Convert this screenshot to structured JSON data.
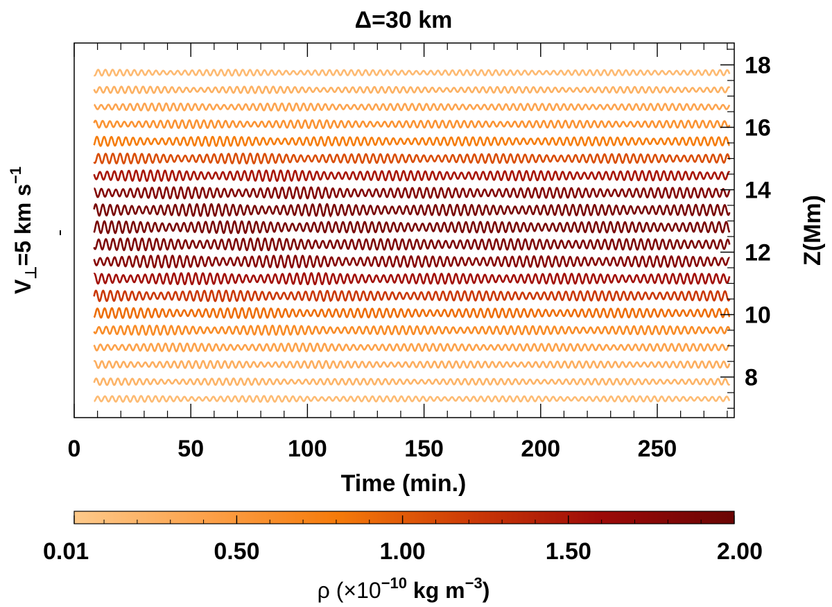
{
  "chart_data": {
    "type": "line",
    "title": "Δ=30 km",
    "xlabel": "Time (min.)",
    "ylabel_left": {
      "base": "V",
      "sub": "⊥",
      "text": "=5 km s",
      "sup": "−1"
    },
    "ylabel_right": "Z(Mm)",
    "xlim": [
      0,
      283
    ],
    "ylim": [
      6.7,
      18.7
    ],
    "xticks": [
      0,
      50,
      100,
      150,
      200,
      250
    ],
    "xtick_labels": [
      "0",
      "50",
      "100",
      "150",
      "200",
      "250"
    ],
    "yticks": [
      8,
      10,
      12,
      14,
      16,
      18
    ],
    "ytick_labels": [
      "8",
      "10",
      "12",
      "14",
      "16",
      "18"
    ],
    "series_time_range": [
      8.5,
      281
    ],
    "oscillation_period_min": 3.1,
    "series": [
      {
        "z": 7.3,
        "rho": 0.15,
        "amp": 0.09
      },
      {
        "z": 7.85,
        "rho": 0.22,
        "amp": 0.1
      },
      {
        "z": 8.4,
        "rho": 0.28,
        "amp": 0.11
      },
      {
        "z": 8.95,
        "rho": 0.4,
        "amp": 0.12
      },
      {
        "z": 9.5,
        "rho": 0.62,
        "amp": 0.14
      },
      {
        "z": 10.05,
        "rho": 0.88,
        "amp": 0.15
      },
      {
        "z": 10.6,
        "rho": 1.22,
        "amp": 0.16
      },
      {
        "z": 11.15,
        "rho": 1.55,
        "amp": 0.17
      },
      {
        "z": 11.7,
        "rho": 1.78,
        "amp": 0.18
      },
      {
        "z": 12.25,
        "rho": 1.85,
        "amp": 0.18
      },
      {
        "z": 12.8,
        "rho": 1.88,
        "amp": 0.18
      },
      {
        "z": 13.35,
        "rho": 1.88,
        "amp": 0.18
      },
      {
        "z": 13.9,
        "rho": 1.8,
        "amp": 0.17
      },
      {
        "z": 14.45,
        "rho": 1.5,
        "amp": 0.16
      },
      {
        "z": 15.0,
        "rho": 1.08,
        "amp": 0.15
      },
      {
        "z": 15.55,
        "rho": 0.78,
        "amp": 0.14
      },
      {
        "z": 16.1,
        "rho": 0.55,
        "amp": 0.12
      },
      {
        "z": 16.65,
        "rho": 0.38,
        "amp": 0.11
      },
      {
        "z": 17.2,
        "rho": 0.25,
        "amp": 0.1
      },
      {
        "z": 17.75,
        "rho": 0.16,
        "amp": 0.09
      }
    ],
    "colorbar": {
      "label": "ρ (×10",
      "label_sup1": "−10",
      "label_mid": " kg m",
      "label_sup2": "−3",
      "label_end": ")",
      "range": [
        0.01,
        2.0
      ],
      "tick_values": [
        0.01,
        0.5,
        1.0,
        1.5,
        2.0
      ],
      "tick_labels": [
        "0.01",
        "0.50",
        "1.00",
        "1.50",
        "2.00"
      ],
      "colors": [
        "#fdc98a",
        "#fca14a",
        "#f57a0a",
        "#cc3a06",
        "#9c0a08",
        "#6a0504"
      ],
      "orientation": "horizontal"
    }
  }
}
